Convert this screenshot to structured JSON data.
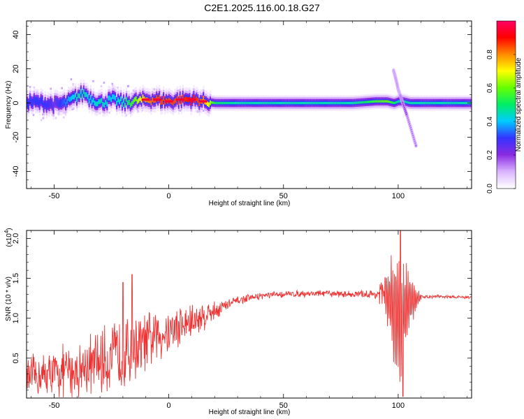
{
  "title": "C2E1.2025.116.00.18.G27",
  "top_panel": {
    "xlabel": "Height of straight line (km)",
    "ylabel": "Frequency (Hz)",
    "colorbar_label": "Normalized spectral amplitude",
    "colorbar_ticks": [
      "0.0",
      "0.2",
      "0.4",
      "0.6",
      "0.8"
    ]
  },
  "bottom_panel": {
    "xlabel": "Height of straight line (km)",
    "ylabel": "SNR (10 * v/v)",
    "multiplier_base": "(x10",
    "multiplier_exp": "4",
    "multiplier_close": ")"
  },
  "colors": {
    "line": "#ee3333",
    "frame": "#000000",
    "colormap": [
      "#ffffff",
      "#d9b3ff",
      "#8a2be2",
      "#3333ff",
      "#00ccff",
      "#00ee66",
      "#66ff00",
      "#ffff00",
      "#ff8800",
      "#ff0000",
      "#ff0066"
    ]
  },
  "chart_data": [
    {
      "type": "heatmap",
      "title": "C2E1.2025.116.00.18.G27",
      "xlabel": "Height of straight line (km)",
      "ylabel": "Frequency (Hz)",
      "xlim": [
        -62,
        132
      ],
      "ylim": [
        -50,
        48
      ],
      "xticks": [
        -50,
        0,
        50,
        100
      ],
      "yticks": [
        -40,
        -20,
        0,
        20,
        40
      ],
      "colorbar": {
        "label": "Normalized spectral amplitude",
        "range": [
          0,
          1
        ],
        "ticks": [
          0.0,
          0.2,
          0.4,
          0.6,
          0.8
        ]
      },
      "ridge": {
        "x": [
          -62,
          -55,
          -50,
          -45,
          -40,
          -37,
          -35,
          -30,
          -25,
          -20,
          -15,
          -10,
          -5,
          0,
          5,
          10,
          15,
          20,
          30,
          40,
          50,
          60,
          70,
          80,
          90,
          95,
          98,
          100,
          102,
          105,
          110,
          120,
          132
        ],
        "freq": [
          1,
          0,
          -1,
          0,
          4,
          6,
          3,
          0,
          2,
          0,
          1,
          2,
          2,
          1,
          2,
          2,
          1,
          0,
          0,
          0,
          0,
          0,
          0,
          0,
          1,
          1,
          0,
          1,
          1,
          0,
          0,
          0,
          0
        ],
        "amplitude": [
          0.3,
          0.3,
          0.25,
          0.35,
          0.45,
          0.45,
          0.4,
          0.45,
          0.4,
          0.45,
          0.6,
          0.8,
          0.85,
          0.85,
          0.85,
          0.9,
          0.8,
          0.5,
          0.45,
          0.45,
          0.45,
          0.45,
          0.45,
          0.45,
          0.55,
          0.6,
          0.5,
          0.45,
          0.45,
          0.45,
          0.45,
          0.45,
          0.45
        ]
      },
      "branch": {
        "x": [
          98,
          99,
          100,
          101,
          102,
          104,
          106,
          108
        ],
        "freq": [
          19,
          14,
          8,
          4,
          0,
          -8,
          -17,
          -26
        ],
        "amplitude": [
          0.15,
          0.15,
          0.15,
          0.2,
          0.2,
          0.15,
          0.15,
          0.15
        ]
      }
    },
    {
      "type": "line",
      "xlabel": "Height of straight line (km)",
      "ylabel": "SNR (10 * v/v)",
      "y_multiplier": 10000,
      "xlim": [
        -62,
        132
      ],
      "ylim": [
        0,
        2.1
      ],
      "xticks": [
        -50,
        0,
        50,
        100
      ],
      "yticks": [
        0.5,
        1.0,
        1.5,
        2.0
      ],
      "envelope_mean": {
        "x": [
          -62,
          -50,
          -40,
          -30,
          -20,
          -10,
          0,
          10,
          20,
          30,
          40,
          50,
          60,
          70,
          80,
          90,
          95,
          100,
          105,
          110,
          120,
          132
        ],
        "y": [
          0.25,
          0.3,
          0.35,
          0.45,
          0.55,
          0.7,
          0.85,
          0.95,
          1.1,
          1.22,
          1.28,
          1.3,
          1.31,
          1.31,
          1.3,
          1.3,
          1.3,
          1.0,
          1.2,
          1.27,
          1.27,
          1.26
        ]
      },
      "envelope_amplitude": {
        "x": [
          -62,
          -50,
          -40,
          -30,
          -20,
          -10,
          0,
          10,
          20,
          30,
          40,
          50,
          60,
          70,
          80,
          90,
          95,
          100,
          105,
          110,
          120,
          132
        ],
        "y": [
          0.25,
          0.3,
          0.35,
          0.4,
          0.45,
          0.35,
          0.3,
          0.25,
          0.12,
          0.05,
          0.04,
          0.04,
          0.04,
          0.04,
          0.04,
          0.06,
          0.3,
          1.0,
          0.3,
          0.03,
          0.02,
          0.02
        ]
      },
      "peaks": [
        {
          "x": -16,
          "y": 1.55
        },
        {
          "x": -20,
          "y": 1.45
        },
        {
          "x": 101,
          "y": 2.1
        },
        {
          "x": 102,
          "y": 0.02
        }
      ]
    }
  ]
}
